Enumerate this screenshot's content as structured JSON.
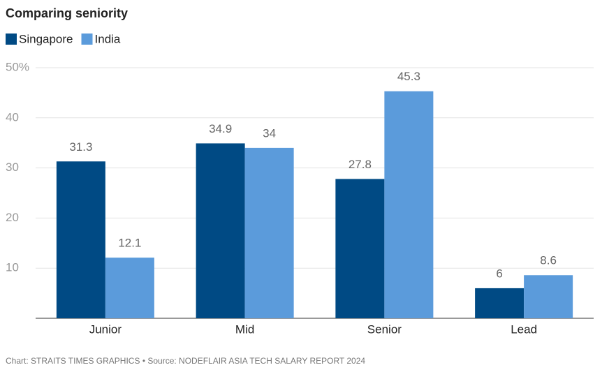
{
  "chart_data": {
    "type": "bar",
    "title": "Comparing seniority",
    "categories": [
      "Junior",
      "Mid",
      "Senior",
      "Lead"
    ],
    "series": [
      {
        "name": "Singapore",
        "color": "#004a84",
        "values": [
          31.3,
          34.9,
          27.8,
          6
        ]
      },
      {
        "name": "India",
        "color": "#5b9bdb",
        "values": [
          12.1,
          34,
          45.3,
          8.6
        ]
      }
    ],
    "ylim": [
      0,
      50
    ],
    "yticks": [
      10,
      20,
      30,
      40,
      {
        "value": 50,
        "label": "50%"
      }
    ],
    "grid": true,
    "legend": "top-left",
    "source": "Chart: STRAITS TIMES GRAPHICS • Source: NODEFLAIR ASIA TECH SALARY REPORT 2024"
  }
}
